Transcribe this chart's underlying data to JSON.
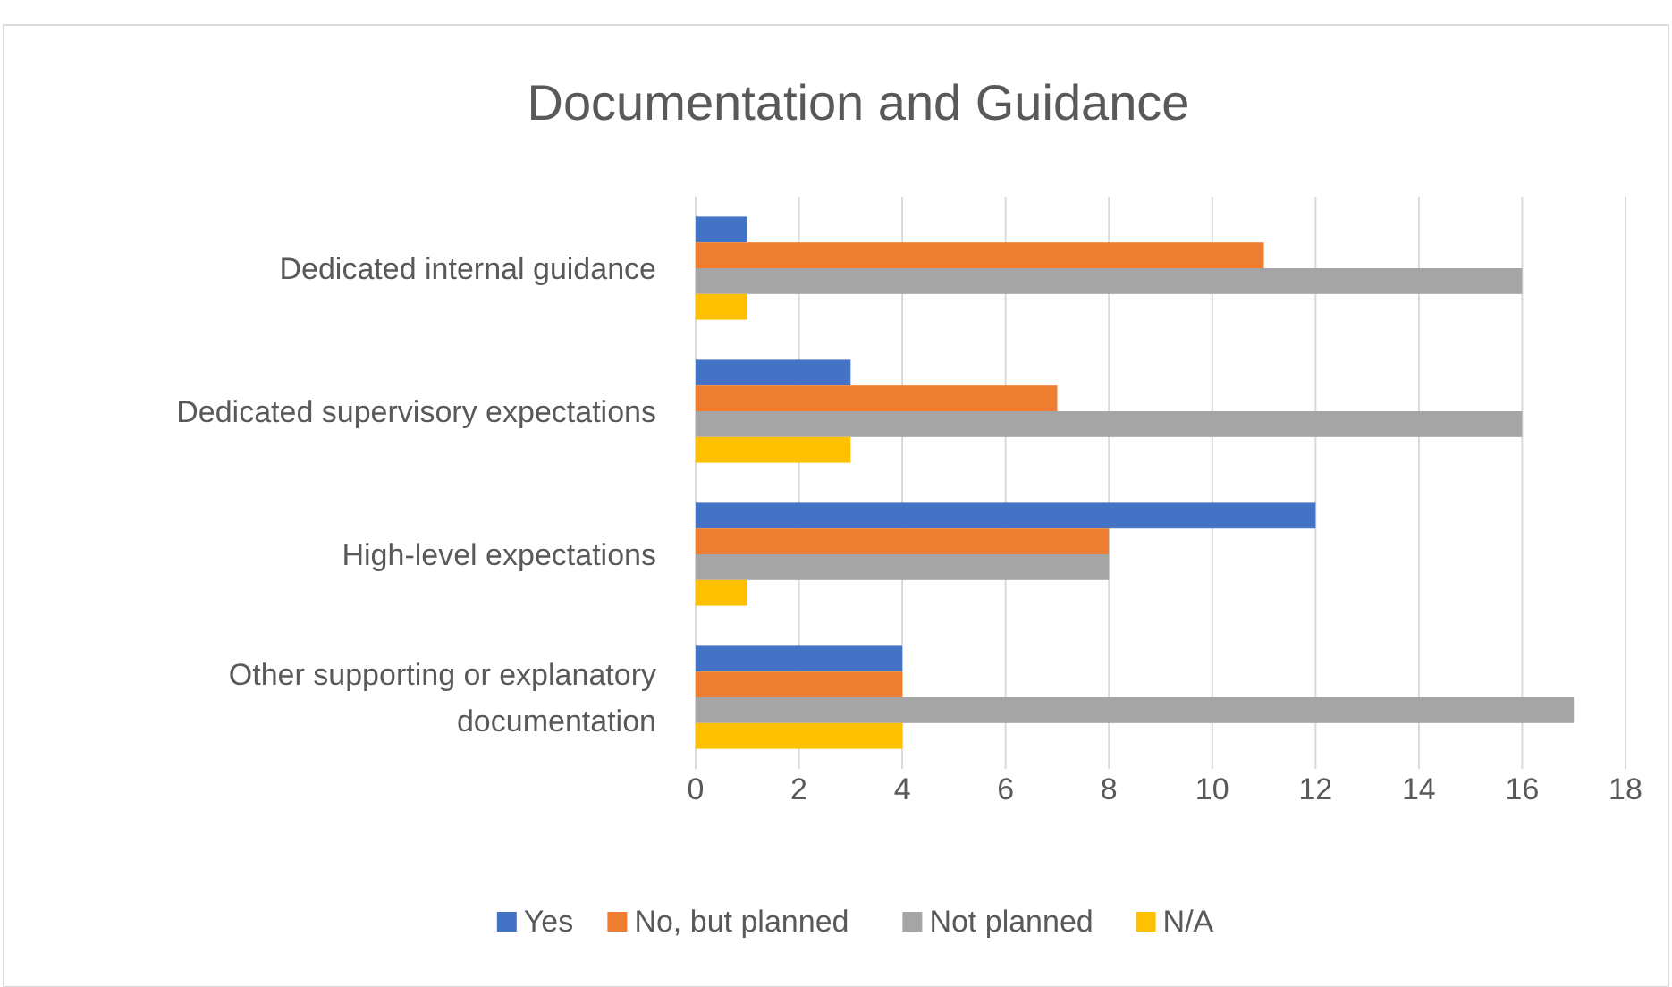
{
  "chart_data": {
    "type": "bar",
    "orientation": "horizontal",
    "title": "Documentation and Guidance",
    "categories": [
      "Dedicated internal guidance",
      "Dedicated supervisory expectations",
      "High-level expectations",
      "Other supporting or explanatory documentation"
    ],
    "series": [
      {
        "name": "Yes",
        "color": "#4472c4",
        "values": [
          1,
          3,
          12,
          4
        ]
      },
      {
        "name": "No, but planned",
        "color": "#ed7d31",
        "values": [
          11,
          7,
          8,
          4
        ]
      },
      {
        "name": "Not planned",
        "color": "#a5a5a5",
        "values": [
          16,
          16,
          8,
          17
        ]
      },
      {
        "name": "N/A",
        "color": "#ffc000",
        "values": [
          1,
          3,
          1,
          4
        ]
      }
    ],
    "xlim": [
      0,
      18
    ],
    "xticks": [
      0,
      2,
      4,
      6,
      8,
      10,
      12,
      14,
      16,
      18
    ],
    "grid": "x",
    "legend": "bottom"
  }
}
